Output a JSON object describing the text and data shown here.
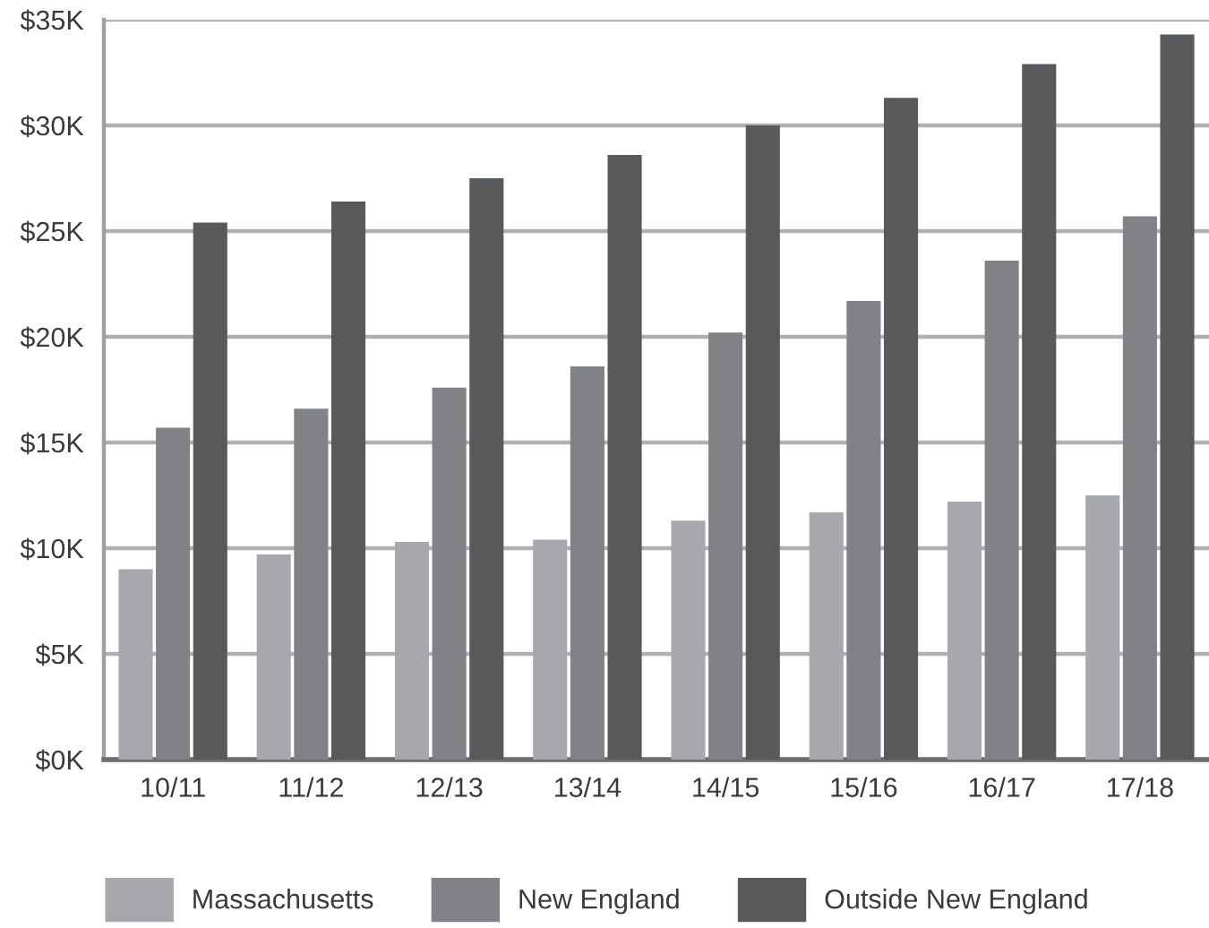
{
  "chart_data": {
    "type": "bar",
    "categories": [
      "10/11",
      "11/12",
      "12/13",
      "13/14",
      "14/15",
      "15/16",
      "16/17",
      "17/18"
    ],
    "series": [
      {
        "name": "Massachusetts",
        "color": "#a7a8ab",
        "values": [
          9.0,
          9.7,
          10.3,
          10.4,
          11.3,
          11.7,
          12.2,
          12.5
        ]
      },
      {
        "name": "New England",
        "color": "#808285",
        "values": [
          15.7,
          16.6,
          17.6,
          18.6,
          20.2,
          21.7,
          23.6,
          25.7
        ]
      },
      {
        "name": "Outside New England",
        "color": "#58595b",
        "values": [
          25.4,
          26.4,
          27.5,
          28.6,
          30.0,
          31.3,
          32.9,
          34.3
        ]
      }
    ],
    "ylim": [
      0,
      35
    ],
    "yticks": [
      {
        "value": 0,
        "label": "$0K"
      },
      {
        "value": 5,
        "label": "$5K"
      },
      {
        "value": 10,
        "label": "$10K"
      },
      {
        "value": 15,
        "label": "$15K"
      },
      {
        "value": 20,
        "label": "$20K"
      },
      {
        "value": 25,
        "label": "$25K"
      },
      {
        "value": 30,
        "label": "$30K"
      },
      {
        "value": 35,
        "label": "$35K"
      }
    ],
    "grid": "y",
    "legend": "bottom"
  }
}
